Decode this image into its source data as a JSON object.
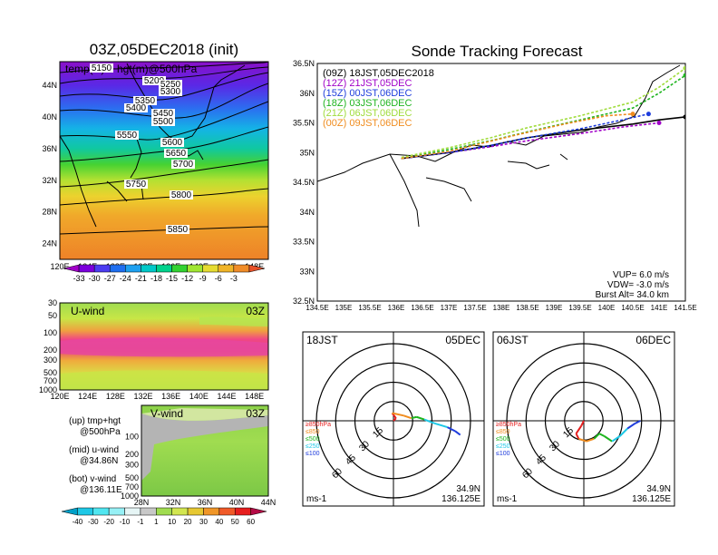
{
  "map_panel": {
    "title": "03Z,05DEC2018 (init)",
    "subtitle": "temp(C) + hgt(m)@500hPa",
    "lat_labels": [
      "44N",
      "40N",
      "36N",
      "32N",
      "28N",
      "24N"
    ],
    "lon_labels": [
      "120E",
      "124E",
      "128E",
      "132E",
      "136E",
      "140E",
      "144E",
      "148E"
    ],
    "contour_labels": [
      "5150",
      "5200",
      "5250",
      "5300",
      "5350",
      "5400",
      "5450",
      "5500",
      "5550",
      "5600",
      "5650",
      "5700",
      "5750",
      "5800",
      "5850"
    ],
    "colorbar_labels": [
      "-33",
      "-30",
      "-27",
      "-24",
      "-21",
      "-18",
      "-15",
      "-12",
      "-9",
      "-6",
      "-3"
    ],
    "colorbar_colors": [
      "#a000c8",
      "#7b00dc",
      "#4b3cf0",
      "#1e6ef0",
      "#1ea0f0",
      "#00c8c8",
      "#00d28c",
      "#32d232",
      "#a0e632",
      "#e6dc32",
      "#f0b428",
      "#f08c28",
      "#e65028"
    ]
  },
  "u_panel": {
    "title": "U-wind",
    "time": "03Z",
    "y_labels": [
      "30",
      "50",
      "100",
      "200",
      "300",
      "500",
      "700",
      "1000"
    ],
    "x_labels": [
      "120E",
      "124E",
      "128E",
      "132E",
      "136E",
      "140E",
      "144E",
      "148E"
    ]
  },
  "v_panel": {
    "title": "V-wind",
    "time": "03Z",
    "y_labels": [
      "100",
      "200",
      "300",
      "500",
      "700",
      "1000"
    ],
    "x_labels": [
      "28N",
      "32N",
      "36N",
      "40N",
      "44N"
    ]
  },
  "notes": [
    {
      "label": "(up) tmp+hgt",
      "sub": "@500hPa"
    },
    {
      "label": "(mid) u-wind",
      "sub": "@34.86N"
    },
    {
      "label": "(bot) v-wind",
      "sub": "@136.11E"
    }
  ],
  "wind_colorbar": {
    "labels": [
      "-40",
      "-30",
      "-20",
      "-10",
      "-1",
      "1",
      "10",
      "20",
      "30",
      "40",
      "50",
      "60"
    ],
    "colors": [
      "#00a0c8",
      "#1ec8e6",
      "#50e6f0",
      "#96f0f5",
      "#e6f5f5",
      "#c8c8c8",
      "#a0dc50",
      "#d2e650",
      "#e6c832",
      "#f09628",
      "#f05a28",
      "#e61e1e",
      "#b40a46"
    ]
  },
  "tracking": {
    "title": "Sonde Tracking Forecast",
    "lat_labels": [
      "36.5N",
      "36N",
      "35.5N",
      "35N",
      "34.5N",
      "34N",
      "33.5N",
      "33N",
      "32.5N"
    ],
    "lon_labels": [
      "134.5E",
      "135E",
      "135.5E",
      "136E",
      "136.5E",
      "137E",
      "137.5E",
      "138E",
      "138.5E",
      "139E",
      "139.5E",
      "140E",
      "140.5E",
      "141E",
      "141.5E"
    ],
    "legend": [
      {
        "label": "(09Z)  18JST,05DEC2018",
        "color": "#000000"
      },
      {
        "label": "(12Z)  21JST,05DEC",
        "color": "#a000c8"
      },
      {
        "label": "(15Z)  00JST,06DEC",
        "color": "#1e3cdc"
      },
      {
        "label": "(18Z)  03JST,06DEC",
        "color": "#1eb41e"
      },
      {
        "label": "(21Z)  06JST,06DEC",
        "color": "#a0dc3c"
      },
      {
        "label": "(00Z)  09JST,06DEC",
        "color": "#f08c1e"
      }
    ],
    "params": [
      "VUP=  6.0  m/s",
      "VDW=  -3.0  m/s",
      "Burst Alt=  34.0  km"
    ]
  },
  "hodographs": [
    {
      "jst": "18JST",
      "date": "05DEC",
      "lat": "34.9N",
      "lon": "136.125E",
      "unit": "ms-1",
      "ring_labels": [
        "15",
        "30",
        "45",
        "60"
      ]
    },
    {
      "jst": "06JST",
      "date": "06DEC",
      "lat": "34.9N",
      "lon": "136.125E",
      "unit": "ms-1",
      "ring_labels": [
        "15",
        "30",
        "45",
        "60"
      ]
    }
  ],
  "hodo_legend": [
    {
      "label": "≥850hPa",
      "color": "#e61e1e"
    },
    {
      "label": "≤850",
      "color": "#f08c1e"
    },
    {
      "label": "≤500",
      "color": "#1eb41e"
    },
    {
      "label": "≤250",
      "color": "#1ec8e6"
    },
    {
      "label": "≤100",
      "color": "#1e3cdc"
    }
  ],
  "chart_data": [
    {
      "type": "heatmap",
      "title": "03Z,05DEC2018 (init)",
      "subtitle": "temp(C) + hgt(m)@500hPa",
      "xlim": [
        120,
        150
      ],
      "ylim": [
        22,
        47
      ],
      "xticks": [
        120,
        124,
        128,
        132,
        136,
        140,
        144,
        148
      ],
      "yticks": [
        24,
        28,
        32,
        36,
        40,
        44
      ],
      "colorbar_ticks": [
        -33,
        -30,
        -27,
        -24,
        -21,
        -18,
        -15,
        -12,
        -9,
        -6,
        -3
      ],
      "height_contours": [
        5150,
        5200,
        5250,
        5300,
        5350,
        5400,
        5450,
        5500,
        5550,
        5600,
        5650,
        5700,
        5750,
        5800,
        5850
      ]
    },
    {
      "type": "heatmap",
      "title": "U-wind",
      "x_ticks": [
        120,
        124,
        128,
        132,
        136,
        140,
        144,
        148
      ],
      "y_ticks_hPa": [
        30,
        50,
        100,
        200,
        300,
        500,
        700,
        1000
      ],
      "jet_core_level_hPa": 200
    },
    {
      "type": "heatmap",
      "title": "V-wind",
      "x_ticks_lat": [
        28,
        32,
        36,
        40,
        44
      ],
      "y_ticks_hPa": [
        100,
        200,
        300,
        500,
        700,
        1000
      ],
      "colorbar_ticks": [
        -40,
        -30,
        -20,
        -10,
        -1,
        1,
        10,
        20,
        30,
        40,
        50,
        60
      ]
    },
    {
      "type": "line",
      "title": "Sonde Tracking Forecast",
      "xlim": [
        134.5,
        141.5
      ],
      "ylim": [
        32.5,
        36.5
      ],
      "series": [
        {
          "name": "(09Z) 18JST,05DEC2018",
          "x": [
            136.1,
            137.0,
            137.8,
            138.5,
            139.5,
            140.5,
            141.0,
            141.5
          ],
          "y": [
            34.9,
            35.0,
            35.12,
            35.25,
            35.38,
            35.48,
            35.55,
            35.6
          ]
        },
        {
          "name": "(12Z) 21JST,05DEC",
          "x": [
            136.1,
            137.0,
            137.8,
            138.5,
            139.5,
            140.3,
            141.0
          ],
          "y": [
            34.9,
            35.0,
            35.1,
            35.2,
            35.32,
            35.43,
            35.5
          ]
        },
        {
          "name": "(15Z) 00JST,06DEC",
          "x": [
            136.1,
            137.0,
            137.8,
            138.5,
            139.5,
            140.3,
            140.8
          ],
          "y": [
            34.9,
            35.0,
            35.12,
            35.25,
            35.4,
            35.55,
            35.65
          ]
        },
        {
          "name": "(18Z) 03JST,06DEC",
          "x": [
            136.1,
            137.0,
            137.8,
            138.5,
            139.5,
            140.5,
            141.0,
            141.5
          ],
          "y": [
            34.9,
            35.05,
            35.2,
            35.35,
            35.55,
            35.75,
            36.0,
            36.3
          ]
        },
        {
          "name": "(21Z) 06JST,06DEC",
          "x": [
            136.1,
            137.0,
            137.8,
            138.5,
            139.5,
            140.5,
            141.0,
            141.5
          ],
          "y": [
            34.92,
            35.08,
            35.25,
            35.42,
            35.62,
            35.85,
            36.1,
            36.42
          ]
        },
        {
          "name": "(00Z) 09JST,06DEC",
          "x": [
            136.1,
            137.0,
            137.6,
            138.3,
            139.2,
            140.0,
            140.5
          ],
          "y": [
            34.9,
            35.02,
            35.15,
            35.3,
            35.48,
            35.62,
            35.65
          ]
        }
      ],
      "annotations": [
        "VUP= 6.0 m/s",
        "VDW= -3.0 m/s",
        "Burst Alt= 34.0 km"
      ]
    },
    {
      "type": "line",
      "title": "Hodograph 18JST 05DEC",
      "rings_ms": [
        15,
        30,
        45,
        60
      ],
      "x": [
        0,
        2,
        -1,
        8,
        14,
        18,
        24,
        32,
        42,
        48,
        52
      ],
      "y": [
        0,
        -2,
        -6,
        -4,
        -2,
        -3,
        -1,
        2,
        5,
        8,
        11
      ]
    },
    {
      "type": "line",
      "title": "Hodograph 06JST 06DEC",
      "rings_ms": [
        15,
        30,
        45,
        60
      ],
      "x": [
        0,
        -2,
        -6,
        -4,
        2,
        8,
        12,
        16,
        22,
        28,
        34,
        40,
        44
      ],
      "y": [
        0,
        4,
        10,
        14,
        16,
        14,
        10,
        12,
        16,
        12,
        6,
        2,
        0
      ]
    }
  ]
}
